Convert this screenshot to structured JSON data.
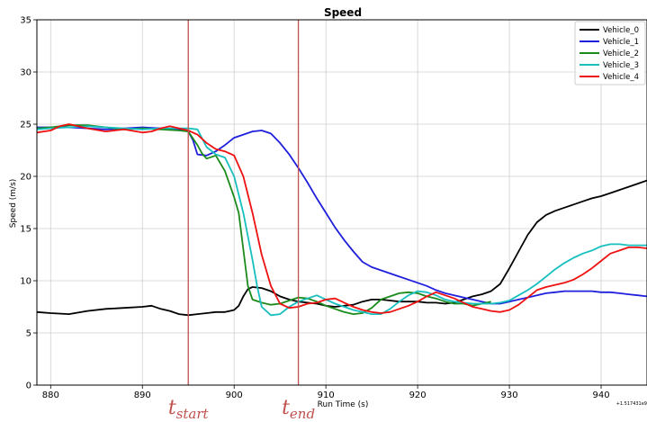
{
  "chart_data": {
    "type": "line",
    "title": "Speed",
    "xlabel": "Run Time (s)",
    "ylabel": "Speed (m/s)",
    "x_offset_label": "+1.517431e9",
    "xlim": [
      878.5,
      945
    ],
    "ylim": [
      0,
      35
    ],
    "xticks": [
      "880",
      "890",
      "900",
      "910",
      "920",
      "930",
      "940"
    ],
    "xtick_values": [
      880,
      890,
      900,
      910,
      920,
      930,
      940
    ],
    "yticks": [
      "0",
      "5",
      "10",
      "15",
      "20",
      "25",
      "30",
      "35"
    ],
    "ytick_values": [
      0,
      5,
      10,
      15,
      20,
      25,
      30,
      35
    ],
    "grid": true,
    "legend_position": "top-right",
    "markers": [
      {
        "x": 895,
        "main": "t",
        "sub": "start",
        "color": "#c0504d"
      },
      {
        "x": 907,
        "main": "t",
        "sub": "end",
        "color": "#c0504d"
      }
    ],
    "series": [
      {
        "name": "Vehicle_0",
        "color": "#000000",
        "x": [
          878.5,
          880,
          882,
          884,
          886,
          888,
          890,
          891,
          892,
          893,
          894,
          895,
          896,
          897,
          898,
          899,
          900,
          900.5,
          901,
          901.5,
          902,
          903,
          904,
          905,
          906,
          907,
          908,
          909,
          910,
          911,
          912,
          913,
          914,
          915,
          916,
          917,
          918,
          919,
          920,
          921,
          922,
          923,
          924,
          925,
          926,
          927,
          928,
          929,
          930,
          931,
          932,
          933,
          934,
          935,
          936,
          937,
          938,
          939,
          940,
          941,
          942,
          943,
          944,
          945
        ],
        "y": [
          7.0,
          6.9,
          6.8,
          7.1,
          7.3,
          7.4,
          7.5,
          7.6,
          7.3,
          7.1,
          6.8,
          6.7,
          6.8,
          6.9,
          7.0,
          7.0,
          7.2,
          7.6,
          8.5,
          9.2,
          9.4,
          9.3,
          9.0,
          8.5,
          8.2,
          8.0,
          7.9,
          7.8,
          7.6,
          7.5,
          7.6,
          7.7,
          8.0,
          8.2,
          8.2,
          8.1,
          8.0,
          8.0,
          8.0,
          7.9,
          7.9,
          7.8,
          7.9,
          8.2,
          8.5,
          8.7,
          9.0,
          9.7,
          11.2,
          12.8,
          14.4,
          15.6,
          16.3,
          16.7,
          17.0,
          17.3,
          17.6,
          17.9,
          18.1,
          18.4,
          18.7,
          19.0,
          19.3,
          19.6
        ]
      },
      {
        "name": "Vehicle_1",
        "color": "#1f1fdd",
        "x": [
          878.5,
          880,
          882,
          884,
          886,
          888,
          890,
          892,
          893,
          894,
          895,
          895.5,
          896,
          897,
          898,
          899,
          900,
          901,
          902,
          903,
          904,
          905,
          906,
          907,
          908,
          909,
          910,
          911,
          912,
          913,
          914,
          915,
          916,
          917,
          918,
          919,
          920,
          921,
          922,
          923,
          924,
          925,
          926,
          927,
          928,
          929,
          930,
          931,
          932,
          933,
          934,
          935,
          936,
          937,
          938,
          939,
          940,
          941,
          942,
          943,
          944,
          945
        ],
        "y": [
          24.7,
          24.7,
          24.7,
          24.6,
          24.5,
          24.6,
          24.7,
          24.6,
          24.5,
          24.5,
          24.3,
          23.5,
          22.1,
          22.0,
          22.4,
          23.0,
          23.7,
          24.0,
          24.3,
          24.4,
          24.1,
          23.2,
          22.1,
          20.8,
          19.4,
          17.9,
          16.5,
          15.1,
          13.9,
          12.8,
          11.8,
          11.3,
          11.0,
          10.7,
          10.4,
          10.1,
          9.8,
          9.5,
          9.1,
          8.8,
          8.6,
          8.4,
          8.2,
          8.0,
          7.8,
          7.8,
          8.0,
          8.2,
          8.4,
          8.6,
          8.8,
          8.9,
          9.0,
          9.0,
          9.0,
          9.0,
          8.9,
          8.9,
          8.8,
          8.7,
          8.6,
          8.5
        ]
      },
      {
        "name": "Vehicle_2",
        "color": "#1b8a1b",
        "x": [
          878.5,
          880,
          882,
          884,
          886,
          888,
          890,
          892,
          894,
          895,
          896,
          896.5,
          897,
          898,
          899,
          900,
          900.5,
          901,
          901.5,
          902,
          903,
          904,
          905,
          906,
          907,
          908,
          909,
          910,
          911,
          912,
          913,
          914,
          915,
          916,
          917,
          918,
          919,
          920,
          921,
          922,
          923,
          924,
          925,
          926,
          927,
          928
        ],
        "y": [
          24.6,
          24.7,
          24.9,
          24.9,
          24.7,
          24.5,
          24.6,
          24.5,
          24.4,
          24.3,
          23.0,
          22.2,
          21.7,
          22.0,
          20.5,
          18.0,
          16.5,
          13.0,
          9.5,
          8.2,
          7.9,
          7.7,
          7.8,
          8.1,
          8.4,
          8.3,
          8.0,
          7.6,
          7.3,
          7.0,
          6.8,
          6.9,
          7.4,
          8.2,
          8.5,
          8.8,
          8.9,
          8.8,
          8.5,
          8.3,
          8.0,
          7.8,
          7.8,
          7.6,
          7.8,
          8.0
        ]
      },
      {
        "name": "Vehicle_3",
        "color": "#17bfbf",
        "x": [
          878.5,
          880,
          882,
          884,
          886,
          888,
          890,
          892,
          894,
          895,
          896,
          897,
          898,
          899,
          900,
          901,
          902,
          902.5,
          903,
          904,
          905,
          906,
          907,
          908,
          909,
          910,
          911,
          912,
          913,
          914,
          915,
          916,
          917,
          918,
          919,
          920,
          921,
          922,
          923,
          924,
          925,
          926,
          927,
          928,
          929,
          930,
          931,
          932,
          933,
          934,
          935,
          936,
          937,
          938,
          939,
          940,
          941,
          942,
          943,
          944,
          945
        ],
        "y": [
          24.5,
          24.6,
          24.7,
          24.8,
          24.7,
          24.6,
          24.5,
          24.6,
          24.6,
          24.6,
          24.5,
          22.8,
          22.1,
          21.8,
          20.0,
          16.5,
          12.0,
          9.5,
          7.5,
          6.7,
          6.8,
          7.5,
          8.0,
          8.3,
          8.6,
          8.2,
          7.8,
          7.5,
          7.2,
          7.0,
          6.8,
          6.8,
          7.3,
          8.0,
          8.6,
          9.0,
          8.9,
          8.6,
          8.2,
          8.0,
          7.9,
          7.8,
          7.8,
          7.8,
          7.9,
          8.1,
          8.6,
          9.1,
          9.7,
          10.4,
          11.1,
          11.7,
          12.2,
          12.6,
          12.9,
          13.3,
          13.5,
          13.5,
          13.4,
          13.4,
          13.4
        ]
      },
      {
        "name": "Vehicle_4",
        "color": "#ee1111",
        "x": [
          878.5,
          880,
          881,
          882,
          884,
          886,
          888,
          890,
          891,
          892,
          893,
          894,
          895,
          896,
          897,
          898,
          899,
          900,
          901,
          902,
          903,
          904,
          905,
          906,
          907,
          908,
          909,
          910,
          911,
          912,
          913,
          914,
          915,
          916,
          917,
          918,
          919,
          920,
          921,
          922,
          923,
          924,
          925,
          926,
          927,
          928,
          929,
          930,
          931,
          932,
          933,
          934,
          935,
          936,
          937,
          938,
          939,
          940,
          941,
          942,
          943,
          944,
          945
        ],
        "y": [
          24.2,
          24.4,
          24.8,
          25.0,
          24.6,
          24.3,
          24.5,
          24.2,
          24.3,
          24.6,
          24.8,
          24.6,
          24.4,
          24.0,
          23.2,
          22.6,
          22.4,
          22.0,
          20.0,
          16.5,
          12.5,
          9.5,
          7.8,
          7.4,
          7.5,
          7.8,
          7.9,
          8.2,
          8.3,
          7.9,
          7.5,
          7.2,
          7.0,
          6.9,
          7.0,
          7.3,
          7.6,
          8.0,
          8.5,
          8.9,
          8.6,
          8.3,
          7.9,
          7.5,
          7.3,
          7.1,
          7.0,
          7.2,
          7.7,
          8.4,
          9.1,
          9.4,
          9.6,
          9.8,
          10.1,
          10.6,
          11.2,
          11.9,
          12.6,
          12.9,
          13.2,
          13.2,
          13.1
        ]
      }
    ]
  }
}
